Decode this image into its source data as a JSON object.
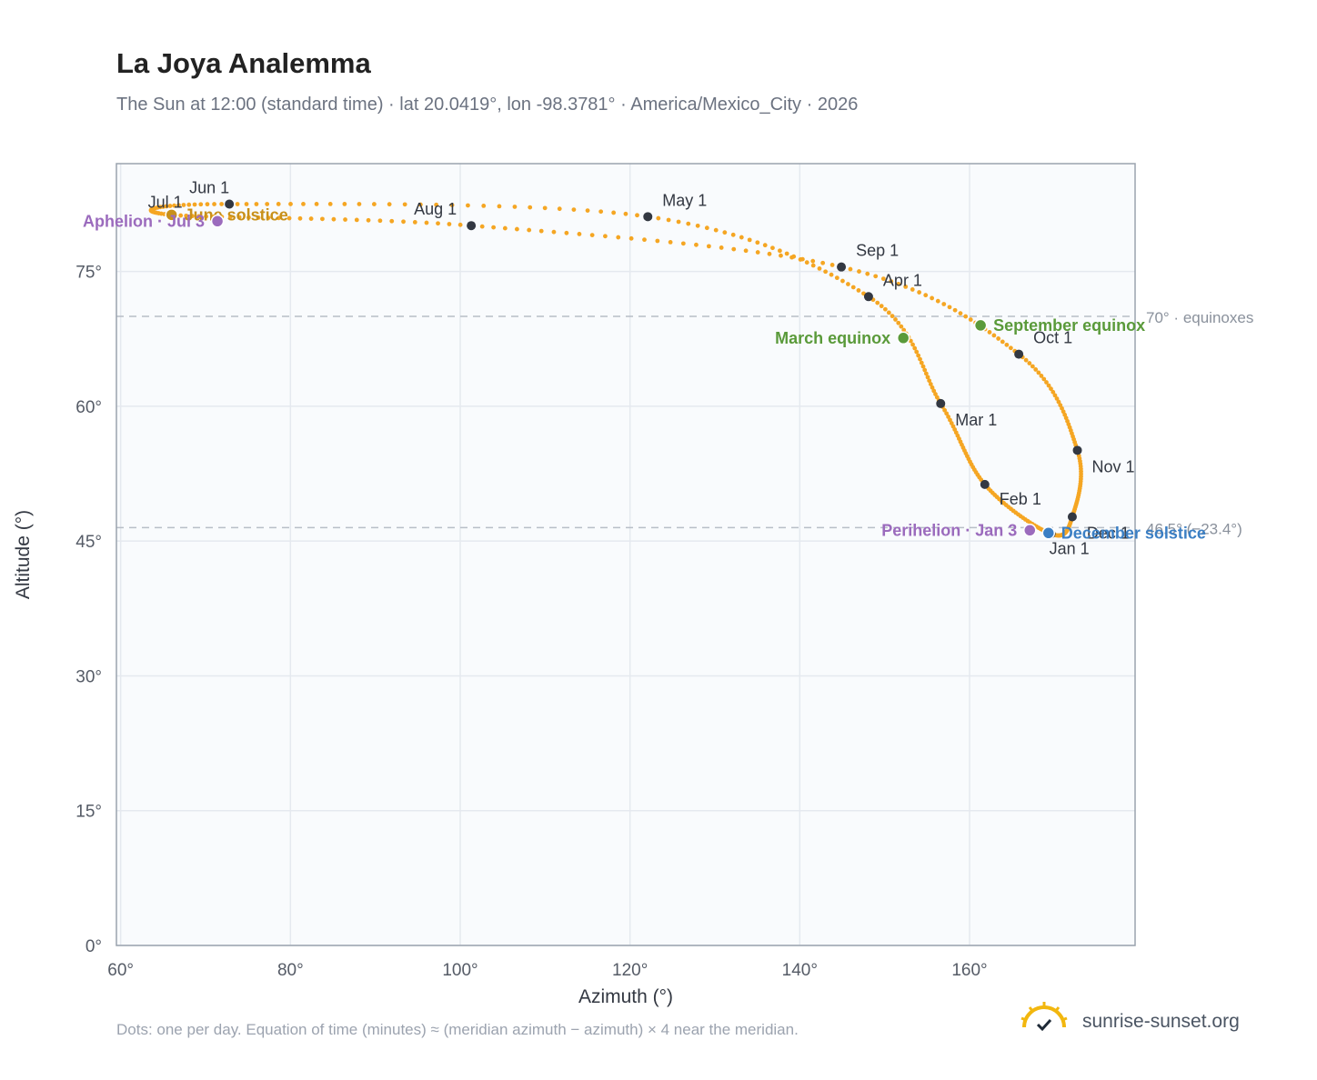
{
  "title": "La Joya Analemma",
  "subtitle": "The Sun at 12:00 (standard time) · lat 20.0419°, lon -98.3781° · America/Mexico_City · 2026",
  "footnote": "Dots: one per day. Equation of time (minutes) ≈ (meridian azimuth − azimuth) × 4 near the meridian.",
  "brand": {
    "text": "sunrise-sunset.org",
    "icon": "sun-check-icon"
  },
  "colors": {
    "curve": "#f5a623",
    "month_dot": "#333842",
    "june_solstice": "#c8901a",
    "december_solstice": "#3b7fc4",
    "equinox": "#5a9a3a",
    "apsis": "#9b6bbd",
    "reference_line": "#b8bec7",
    "plot_background": "#f9fbfd",
    "grid": "#e5e9ef"
  },
  "chart_data": {
    "type": "scatter",
    "title": "La Joya Analemma",
    "xlabel": "Azimuth (°)",
    "ylabel": "Altitude (°)",
    "xlim": [
      59.5,
      179.5
    ],
    "ylim": [
      0,
      87
    ],
    "xticks": [
      "60°",
      "80°",
      "100°",
      "120°",
      "140°",
      "160°"
    ],
    "xtick_values": [
      60,
      80,
      100,
      120,
      140,
      160
    ],
    "yticks": [
      "0°",
      "15°",
      "30°",
      "45°",
      "60°",
      "75°"
    ],
    "ytick_values": [
      0,
      15,
      30,
      45,
      60,
      75
    ],
    "grid": true,
    "series_note_daily_points": 365,
    "month_markers": [
      {
        "label": "Jan 1",
        "azimuth": 169.6,
        "altitude": 45.8
      },
      {
        "label": "Feb 1",
        "azimuth": 161.8,
        "altitude": 51.3
      },
      {
        "label": "Mar 1",
        "azimuth": 156.6,
        "altitude": 60.3
      },
      {
        "label": "Apr 1",
        "azimuth": 148.1,
        "altitude": 72.2
      },
      {
        "label": "May 1",
        "azimuth": 122.1,
        "altitude": 81.1
      },
      {
        "label": "Jun 1",
        "azimuth": 72.8,
        "altitude": 82.5
      },
      {
        "label": "Jul 1",
        "azimuth": 66.0,
        "altitude": 81.3
      },
      {
        "label": "Aug 1",
        "azimuth": 101.3,
        "altitude": 80.1
      },
      {
        "label": "Sep 1",
        "azimuth": 144.9,
        "altitude": 75.5
      },
      {
        "label": "Oct 1",
        "azimuth": 165.8,
        "altitude": 65.8
      },
      {
        "label": "Nov 1",
        "azimuth": 172.7,
        "altitude": 55.1
      },
      {
        "label": "Dec 1",
        "azimuth": 172.1,
        "altitude": 47.7
      }
    ],
    "events": [
      {
        "label": "June solstice",
        "azimuth": 66.0,
        "altitude": 81.3,
        "color_key": "june_solstice",
        "anchor": "right"
      },
      {
        "label": "Aphelion · Jul 3",
        "azimuth": 71.4,
        "altitude": 80.6,
        "color_key": "apsis",
        "anchor": "left"
      },
      {
        "label": "March equinox",
        "azimuth": 152.2,
        "altitude": 67.6,
        "color_key": "equinox",
        "anchor": "left"
      },
      {
        "label": "September equinox",
        "azimuth": 161.3,
        "altitude": 69.0,
        "color_key": "equinox",
        "anchor": "right"
      },
      {
        "label": "Perihelion · Jan 3",
        "azimuth": 167.1,
        "altitude": 46.2,
        "color_key": "apsis",
        "anchor": "left"
      },
      {
        "label": "December solstice",
        "azimuth": 169.3,
        "altitude": 45.9,
        "color_key": "december_solstice",
        "anchor": "right"
      }
    ],
    "reference_lines": [
      {
        "label": "70° · equinoxes",
        "altitude": 70.0
      },
      {
        "label": "46.5° (−23.4°)",
        "altitude": 46.5
      }
    ]
  }
}
